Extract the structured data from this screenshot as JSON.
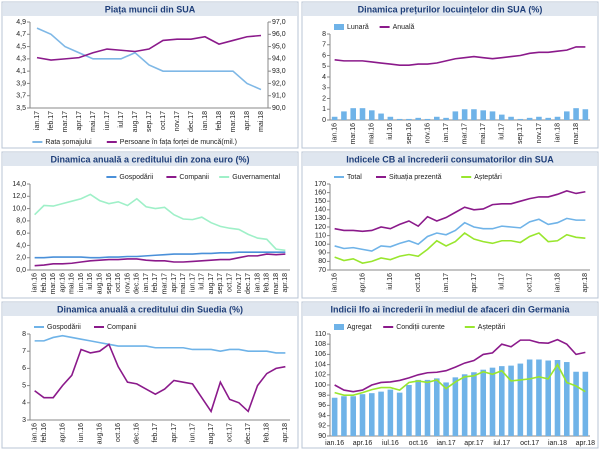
{
  "chart_data": [
    {
      "type": "line",
      "title": "Piața muncii din SUA",
      "legend": "bottom",
      "categories": [
        "ian.17",
        "feb.17",
        "mar.17",
        "apr.17",
        "mai.17",
        "iun.17",
        "iul.17",
        "aug.17",
        "sep.17",
        "oct.17",
        "nov.17",
        "dec.17",
        "ian.18",
        "feb.18",
        "mar.18",
        "apr.18",
        "mai.18"
      ],
      "series": [
        {
          "name": "Rata șomajului",
          "color": "#7fb8e6",
          "kind": "line",
          "values": [
            4.8,
            4.7,
            4.5,
            4.4,
            4.3,
            4.3,
            4.3,
            4.4,
            4.2,
            4.1,
            4.1,
            4.1,
            4.1,
            4.1,
            4.1,
            3.9,
            3.8
          ]
        },
        {
          "name": "Persoane în fața forței de muncă(mil.)",
          "color": "#8b1a8b",
          "kind": "line",
          "axis": "y2",
          "values": [
            94.1,
            93.9,
            94.0,
            94.1,
            94.5,
            94.8,
            94.7,
            94.6,
            94.8,
            95.5,
            95.6,
            95.6,
            95.8,
            95.2,
            95.5,
            95.8,
            95.9
          ]
        }
      ],
      "ylim": [
        3.5,
        4.9
      ],
      "yticks": [
        {
          "value": 3.5,
          "label": "3,5"
        },
        {
          "value": 3.7,
          "label": "3,7"
        },
        {
          "value": 3.9,
          "label": "3,9"
        },
        {
          "value": 4.1,
          "label": "4,1"
        },
        {
          "value": 4.3,
          "label": "4,3"
        },
        {
          "value": 4.5,
          "label": "4,5"
        },
        {
          "value": 4.7,
          "label": "4,7"
        },
        {
          "value": 4.9,
          "label": "4,9"
        }
      ],
      "y2lim": [
        90,
        97
      ],
      "y2ticks": [
        {
          "value": 90,
          "label": "90,0"
        },
        {
          "value": 91,
          "label": "91,0"
        },
        {
          "value": 92,
          "label": "92,0"
        },
        {
          "value": 93,
          "label": "93,0"
        },
        {
          "value": 94,
          "label": "94,0"
        },
        {
          "value": 95,
          "label": "95,0"
        },
        {
          "value": 96,
          "label": "96,0"
        },
        {
          "value": 97,
          "label": "97,0"
        }
      ],
      "grid": false,
      "rotate_labels": true
    },
    {
      "type": "bar_line",
      "title": "Dinamica prețurilor locuințelor din SUA (%)",
      "legend": "top-left",
      "categories": [
        "ian.16",
        null,
        "mar.16",
        null,
        "mai.16",
        null,
        "iul.16",
        null,
        "sep.16",
        null,
        "nov.16",
        null,
        "ian.17",
        null,
        "mar.17",
        null,
        "mai.17",
        null,
        "iul.17",
        null,
        "sep.17",
        null,
        "nov.17",
        null,
        "ian.18",
        null,
        "mar.18",
        null
      ],
      "series": [
        {
          "name": "Lunară",
          "color": "#6fb3e8",
          "kind": "bar",
          "values": [
            0.3,
            0.8,
            1.1,
            1.1,
            0.9,
            0.6,
            0.3,
            0.1,
            0.1,
            0.2,
            0.1,
            0.3,
            0.2,
            0.8,
            1.0,
            1.0,
            0.9,
            0.8,
            0.5,
            0.3,
            0.1,
            0.2,
            0.3,
            0.2,
            0.3,
            0.8,
            1.1,
            1.0
          ]
        },
        {
          "name": "Anuală",
          "color": "#8b1a8b",
          "kind": "line",
          "values": [
            5.6,
            5.5,
            5.5,
            5.5,
            5.4,
            5.3,
            5.2,
            5.1,
            5.1,
            5.2,
            5.2,
            5.3,
            5.5,
            5.7,
            5.8,
            5.9,
            5.8,
            5.7,
            5.8,
            5.9,
            6.0,
            6.2,
            6.3,
            6.3,
            6.4,
            6.5,
            6.8,
            6.8
          ]
        }
      ],
      "ylim": [
        0,
        8
      ],
      "yticks": [
        0,
        1,
        2,
        3,
        4,
        5,
        6,
        7,
        8
      ],
      "grid": false,
      "rotate_labels": true
    },
    {
      "type": "line",
      "title": "Dinamica anuală a creditului din zona euro (%)",
      "legend": "top-right",
      "categories": [
        "ian.16",
        "feb.16",
        "mar.16",
        "apr.16",
        "mai.16",
        "iun.16",
        "iul.16",
        "aug.16",
        "sep.16",
        "oct.16",
        "nov.16",
        "dec.16",
        "ian.17",
        "feb.17",
        "mar.17",
        "apr.17",
        "mai.17",
        "iun.17",
        "iul.17",
        "aug.17",
        "sep.17",
        "oct.17",
        "nov.17",
        "dec.17",
        "ian.18",
        "feb.18",
        "mar.18",
        "apr.18"
      ],
      "series": [
        {
          "name": "Gospodării",
          "color": "#4a90d9",
          "kind": "line",
          "values": [
            2.0,
            2.0,
            2.1,
            2.1,
            2.1,
            2.1,
            2.0,
            2.0,
            2.1,
            2.1,
            2.2,
            2.2,
            2.3,
            2.4,
            2.5,
            2.6,
            2.6,
            2.6,
            2.7,
            2.7,
            2.8,
            2.8,
            2.9,
            2.9,
            2.9,
            2.9,
            2.9,
            2.9
          ]
        },
        {
          "name": "Companii",
          "color": "#8b1a8b",
          "kind": "line",
          "values": [
            0.7,
            0.8,
            1.0,
            1.0,
            1.1,
            1.3,
            1.5,
            1.6,
            1.7,
            1.7,
            1.8,
            1.8,
            1.6,
            1.5,
            1.5,
            1.3,
            1.3,
            1.4,
            1.5,
            1.6,
            1.7,
            1.7,
            2.0,
            2.3,
            2.3,
            2.6,
            2.5,
            2.6
          ]
        },
        {
          "name": "Guvernamental",
          "color": "#9ff0c8",
          "kind": "line",
          "values": [
            9.0,
            10.5,
            10.4,
            10.8,
            11.2,
            11.6,
            12.3,
            11.3,
            10.8,
            11.1,
            10.5,
            11.6,
            10.3,
            10.0,
            10.2,
            9.0,
            8.3,
            8.2,
            8.6,
            7.7,
            7.1,
            6.8,
            6.6,
            5.8,
            5.2,
            5.0,
            3.4,
            3.2
          ]
        }
      ],
      "ylim": [
        0,
        14
      ],
      "yticks": [
        {
          "value": 0,
          "label": "0,0"
        },
        {
          "value": 2,
          "label": "2,0"
        },
        {
          "value": 4,
          "label": "4,0"
        },
        {
          "value": 6,
          "label": "6,0"
        },
        {
          "value": 8,
          "label": "8,0"
        },
        {
          "value": 10,
          "label": "10,0"
        },
        {
          "value": 12,
          "label": "12,0"
        },
        {
          "value": 14,
          "label": "14,0"
        }
      ],
      "grid": false,
      "rotate_labels": true
    },
    {
      "type": "line",
      "title": "Indicele CB al încrederii consumatorilor din SUA",
      "legend": "top-left",
      "categories": [
        "ian.16",
        null,
        null,
        "apr.16",
        null,
        null,
        "iul.16",
        null,
        null,
        "oct.16",
        null,
        null,
        "ian.17",
        null,
        null,
        "apr.17",
        null,
        null,
        "iul.17",
        null,
        null,
        "oct.17",
        null,
        null,
        "ian.18",
        null,
        null,
        "apr.18"
      ],
      "series": [
        {
          "name": "Total",
          "color": "#6fb3e8",
          "kind": "line",
          "values": [
            98,
            95,
            96,
            94,
            92,
            98,
            97,
            101,
            104,
            100,
            109,
            113,
            111,
            116,
            125,
            120,
            118,
            118,
            121,
            120,
            119,
            126,
            129,
            123,
            125,
            130,
            128,
            128
          ]
        },
        {
          "name": "Situația prezentă",
          "color": "#8b1a8b",
          "kind": "line",
          "values": [
            118,
            116,
            116,
            115,
            116,
            120,
            118,
            123,
            127,
            121,
            132,
            127,
            131,
            137,
            143,
            140,
            141,
            146,
            147,
            147,
            150,
            153,
            155,
            155,
            158,
            162,
            159,
            161
          ]
        },
        {
          "name": "Așteptări",
          "color": "#99e62e",
          "kind": "line",
          "values": [
            85,
            81,
            83,
            78,
            80,
            84,
            82,
            86,
            88,
            86,
            94,
            104,
            98,
            103,
            113,
            106,
            103,
            101,
            104,
            104,
            102,
            109,
            113,
            103,
            104,
            111,
            108,
            107
          ]
        }
      ],
      "ylim": [
        70,
        170
      ],
      "yticks": [
        70,
        80,
        90,
        100,
        110,
        120,
        130,
        140,
        150,
        160,
        170
      ],
      "grid": false,
      "rotate_labels": true
    },
    {
      "type": "line",
      "title": "Dinamica anuală a creditului din Suedia (%)",
      "legend": "top-left",
      "categories": [
        "ian.16",
        "feb.16",
        null,
        "apr.16",
        null,
        "iun.16",
        null,
        "aug.16",
        null,
        "oct.16",
        null,
        "dec.16",
        null,
        "feb.17",
        null,
        "apr.17",
        null,
        "iun.17",
        null,
        "aug.17",
        null,
        "oct.17",
        null,
        "dec.17",
        null,
        "feb.18",
        null,
        "apr.18"
      ],
      "series": [
        {
          "name": "Gospodării",
          "color": "#6fb3e8",
          "kind": "line",
          "values": [
            7.6,
            7.6,
            7.8,
            7.9,
            7.8,
            7.7,
            7.6,
            7.5,
            7.4,
            7.3,
            7.3,
            7.3,
            7.3,
            7.2,
            7.2,
            7.2,
            7.2,
            7.1,
            7.1,
            7.1,
            7.0,
            7.1,
            7.1,
            7.0,
            7.0,
            7.0,
            6.9,
            6.9
          ]
        },
        {
          "name": "Companii",
          "color": "#8b1a8b",
          "kind": "line",
          "values": [
            4.7,
            4.3,
            4.3,
            5.0,
            5.6,
            7.1,
            6.9,
            7.0,
            7.4,
            6.1,
            5.2,
            5.1,
            4.8,
            4.5,
            4.8,
            5.3,
            5.2,
            5.1,
            4.3,
            3.5,
            5.2,
            4.2,
            4.0,
            3.5,
            5.0,
            5.7,
            6.0,
            6.1
          ]
        }
      ],
      "ylim": [
        3,
        8
      ],
      "yticks": [
        3,
        4,
        5,
        6,
        7,
        8
      ],
      "grid": false,
      "rotate_labels": true
    },
    {
      "type": "bar_line",
      "title": "Indicii Ifo ai încrederii în mediul de afaceri din Germania",
      "legend": "top-left",
      "categories": [
        "ian.16",
        null,
        null,
        "apr.16",
        null,
        null,
        "iul.16",
        null,
        null,
        "oct.16",
        null,
        null,
        "ian.17",
        null,
        null,
        "apr.17",
        null,
        null,
        "iul.17",
        null,
        null,
        "oct.17",
        null,
        null,
        "ian.18",
        null,
        null,
        "apr.18"
      ],
      "series": [
        {
          "name": "Agregat",
          "color": "#6fb3e8",
          "kind": "bar",
          "values": [
            97.5,
            97.8,
            97.8,
            98.2,
            98.4,
            98.7,
            99.1,
            98.5,
            100.0,
            101.0,
            101.0,
            101.3,
            100.5,
            101.5,
            102.1,
            102.5,
            103.0,
            103.4,
            103.7,
            103.8,
            104.2,
            105.0,
            105.0,
            104.8,
            104.9,
            104.5,
            102.6,
            102.6
          ]
        },
        {
          "name": "Condiții curente",
          "color": "#8b1a8b",
          "kind": "line",
          "values": [
            100.0,
            99.0,
            98.7,
            99.0,
            100.0,
            100.5,
            100.6,
            100.9,
            101.4,
            102.0,
            102.4,
            102.5,
            102.8,
            103.5,
            104.3,
            104.8,
            106.0,
            106.3,
            108.0,
            107.5,
            108.8,
            108.8,
            108.3,
            108.2,
            108.9,
            108.0,
            106.0,
            106.4
          ]
        },
        {
          "name": "Așteptări",
          "color": "#99e62e",
          "kind": "line",
          "values": [
            98.5,
            98.0,
            98.0,
            98.5,
            99.1,
            99.5,
            99.5,
            99.0,
            100.5,
            100.8,
            100.5,
            101.0,
            99.3,
            100.6,
            101.6,
            101.8,
            102.6,
            102.1,
            102.8,
            100.8,
            101.0,
            101.2,
            101.6,
            101.2,
            104.0,
            100.5,
            99.8,
            98.7
          ]
        }
      ],
      "ylim": [
        90,
        110
      ],
      "yticks": [
        90,
        92,
        94,
        96,
        98,
        100,
        102,
        104,
        106,
        108,
        110
      ],
      "grid": false,
      "rotate_labels": false
    }
  ]
}
